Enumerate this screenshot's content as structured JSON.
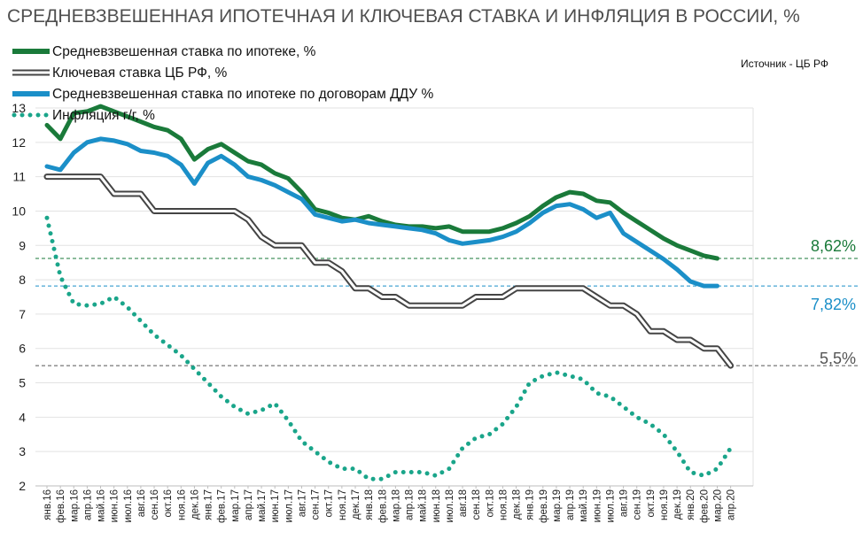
{
  "chart_data": {
    "type": "line",
    "title": "СРЕДНЕВЗВЕШЕННАЯ ИПОТЕЧНАЯ  И КЛЮЧЕВАЯ СТАВКА И ИНФЛЯЦИЯ В РОССИИ, %",
    "source": "Источник  - ЦБ РФ",
    "ylim": [
      2,
      13
    ],
    "yticks": [
      2,
      3,
      4,
      5,
      6,
      7,
      8,
      9,
      10,
      11,
      12,
      13
    ],
    "grid": "horizontal",
    "legend_position": "top-left",
    "categories": [
      "янв.16",
      "фев.16",
      "мар.16",
      "апр.16",
      "май.16",
      "июн.16",
      "июл.16",
      "авг.16",
      "сен.16",
      "окт.16",
      "ноя.16",
      "дек.16",
      "янв.17",
      "фев.17",
      "мар.17",
      "апр.17",
      "май.17",
      "июн.17",
      "июл.17",
      "авг.17",
      "сен.17",
      "окт.17",
      "ноя.17",
      "дек.17",
      "янв.18",
      "фев.18",
      "мар.18",
      "апр.18",
      "май.18",
      "июн.18",
      "июл.18",
      "авг.18",
      "сен.18",
      "окт.18",
      "ноя.18",
      "дек.18",
      "янв.19",
      "фев.19",
      "мар.19",
      "апр.19",
      "май.19",
      "июн.19",
      "июл.19",
      "авг.19",
      "сен.19",
      "окт.19",
      "ноя.19",
      "дек.19",
      "янв.20",
      "фев.20",
      "мар.20",
      "апр.20"
    ],
    "series": [
      {
        "name": "Средневзвешенная ставка по ипотеке, %",
        "color": "#1a7a3a",
        "style": "solid",
        "values": [
          12.5,
          12.1,
          12.85,
          12.9,
          13.05,
          12.9,
          12.75,
          12.6,
          12.45,
          12.35,
          12.1,
          11.5,
          11.8,
          11.95,
          11.7,
          11.45,
          11.35,
          11.1,
          10.95,
          10.55,
          10.05,
          9.95,
          9.8,
          9.75,
          9.85,
          9.7,
          9.6,
          9.55,
          9.55,
          9.5,
          9.55,
          9.4,
          9.4,
          9.4,
          9.5,
          9.65,
          9.85,
          10.15,
          10.4,
          10.55,
          10.5,
          10.3,
          10.25,
          9.95,
          9.7,
          9.45,
          9.2,
          9.0,
          8.85,
          8.7,
          8.62,
          null
        ]
      },
      {
        "name": "Ключевая ставка ЦБ РФ, %",
        "color": "#555555",
        "style": "double",
        "values": [
          11,
          11,
          11,
          11,
          11,
          10.5,
          10.5,
          10.5,
          10,
          10,
          10,
          10,
          10,
          10,
          10,
          9.75,
          9.25,
          9,
          9,
          9,
          8.5,
          8.5,
          8.25,
          7.75,
          7.75,
          7.5,
          7.5,
          7.25,
          7.25,
          7.25,
          7.25,
          7.25,
          7.5,
          7.5,
          7.5,
          7.75,
          7.75,
          7.75,
          7.75,
          7.75,
          7.75,
          7.5,
          7.25,
          7.25,
          7,
          6.5,
          6.5,
          6.25,
          6.25,
          6,
          6,
          5.5
        ]
      },
      {
        "name": "Средневзвешенная ставка по ипотеке по договорам ДДУ %",
        "color": "#1b8fc8",
        "style": "solid",
        "values": [
          11.3,
          11.2,
          11.7,
          12.0,
          12.1,
          12.05,
          11.95,
          11.75,
          11.7,
          11.6,
          11.35,
          10.8,
          11.4,
          11.6,
          11.35,
          11.0,
          10.9,
          10.75,
          10.55,
          10.35,
          9.9,
          9.8,
          9.7,
          9.75,
          9.65,
          9.6,
          9.55,
          9.5,
          9.45,
          9.35,
          9.15,
          9.05,
          9.1,
          9.15,
          9.25,
          9.4,
          9.65,
          9.95,
          10.15,
          10.2,
          10.05,
          9.8,
          9.95,
          9.35,
          9.1,
          8.85,
          8.6,
          8.3,
          7.95,
          7.82,
          7.82,
          null
        ]
      },
      {
        "name": "Инфляция г/г,  %",
        "color": "#1aa58a",
        "style": "dotted",
        "values": [
          9.8,
          8.1,
          7.3,
          7.25,
          7.3,
          7.5,
          7.2,
          6.8,
          6.4,
          6.1,
          5.8,
          5.4,
          5.0,
          4.6,
          4.3,
          4.1,
          4.2,
          4.4,
          3.9,
          3.3,
          3.0,
          2.7,
          2.5,
          2.5,
          2.2,
          2.2,
          2.4,
          2.4,
          2.4,
          2.3,
          2.5,
          3.1,
          3.4,
          3.5,
          3.8,
          4.3,
          5.0,
          5.2,
          5.3,
          5.2,
          5.1,
          4.7,
          4.6,
          4.3,
          4.0,
          3.8,
          3.5,
          3.0,
          2.4,
          2.3,
          2.5,
          3.1
        ]
      }
    ],
    "reference_lines": [
      {
        "value": 8.62,
        "label": "8,62%",
        "color": "#1a7a3a"
      },
      {
        "value": 7.82,
        "label": "7,82%",
        "color": "#1b8fc8"
      },
      {
        "value": 5.5,
        "label": "5,5%",
        "color": "#555555"
      }
    ]
  }
}
